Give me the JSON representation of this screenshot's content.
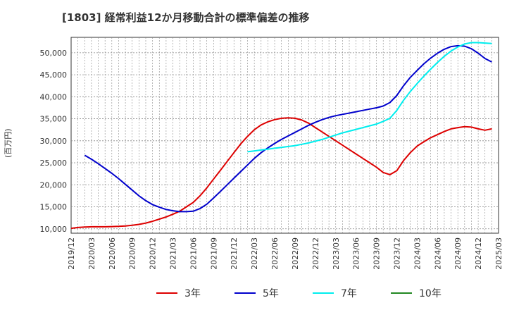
{
  "chart_data": {
    "type": "line",
    "title": "[1803]  経常利益12か月移動合計の標準偏差の推移",
    "ylabel": "(百万円)",
    "xlabel": "",
    "ylim": [
      9000,
      53500
    ],
    "yticks": [
      10000,
      15000,
      20000,
      25000,
      30000,
      35000,
      40000,
      45000,
      50000
    ],
    "ytick_labels": [
      "10,000",
      "15,000",
      "20,000",
      "25,000",
      "30,000",
      "35,000",
      "40,000",
      "45,000",
      "50,000"
    ],
    "xticks": [
      "2019/12",
      "2020/03",
      "2020/06",
      "2020/09",
      "2020/12",
      "2021/03",
      "2021/06",
      "2021/09",
      "2021/12",
      "2022/03",
      "2022/06",
      "2022/09",
      "2022/12",
      "2023/03",
      "2023/06",
      "2023/09",
      "2023/12",
      "2024/03",
      "2024/06",
      "2024/09",
      "2024/12",
      "2025/03"
    ],
    "grid": true,
    "legend_position": "bottom",
    "series": [
      {
        "name": "3年",
        "color": "#dd0000",
        "points": [
          [
            "2019/12",
            10100
          ],
          [
            "2020/01",
            10300
          ],
          [
            "2020/02",
            10400
          ],
          [
            "2020/03",
            10450
          ],
          [
            "2020/04",
            10450
          ],
          [
            "2020/05",
            10450
          ],
          [
            "2020/06",
            10500
          ],
          [
            "2020/07",
            10550
          ],
          [
            "2020/08",
            10650
          ],
          [
            "2020/09",
            10800
          ],
          [
            "2020/10",
            11000
          ],
          [
            "2020/11",
            11300
          ],
          [
            "2020/12",
            11700
          ],
          [
            "2021/01",
            12200
          ],
          [
            "2021/02",
            12700
          ],
          [
            "2021/03",
            13300
          ],
          [
            "2021/04",
            14000
          ],
          [
            "2021/05",
            15000
          ],
          [
            "2021/06",
            16000
          ],
          [
            "2021/07",
            17500
          ],
          [
            "2021/08",
            19300
          ],
          [
            "2021/09",
            21300
          ],
          [
            "2021/10",
            23300
          ],
          [
            "2021/11",
            25300
          ],
          [
            "2021/12",
            27300
          ],
          [
            "2022/01",
            29300
          ],
          [
            "2022/02",
            31000
          ],
          [
            "2022/03",
            32500
          ],
          [
            "2022/04",
            33600
          ],
          [
            "2022/05",
            34300
          ],
          [
            "2022/06",
            34800
          ],
          [
            "2022/07",
            35100
          ],
          [
            "2022/08",
            35200
          ],
          [
            "2022/09",
            35100
          ],
          [
            "2022/10",
            34700
          ],
          [
            "2022/11",
            34000
          ],
          [
            "2022/12",
            33000
          ],
          [
            "2023/01",
            32000
          ],
          [
            "2023/02",
            31000
          ],
          [
            "2023/03",
            30000
          ],
          [
            "2023/04",
            29000
          ],
          [
            "2023/05",
            28000
          ],
          [
            "2023/06",
            27000
          ],
          [
            "2023/07",
            26000
          ],
          [
            "2023/08",
            25000
          ],
          [
            "2023/09",
            24000
          ],
          [
            "2023/10",
            22800
          ],
          [
            "2023/11",
            22300
          ],
          [
            "2023/12",
            23200
          ],
          [
            "2024/01",
            25500
          ],
          [
            "2024/02",
            27300
          ],
          [
            "2024/03",
            28800
          ],
          [
            "2024/04",
            29800
          ],
          [
            "2024/05",
            30700
          ],
          [
            "2024/06",
            31400
          ],
          [
            "2024/07",
            32100
          ],
          [
            "2024/08",
            32700
          ],
          [
            "2024/09",
            33000
          ],
          [
            "2024/10",
            33200
          ],
          [
            "2024/11",
            33100
          ],
          [
            "2024/12",
            32700
          ],
          [
            "2025/01",
            32400
          ],
          [
            "2025/02",
            32700
          ]
        ]
      },
      {
        "name": "5年",
        "color": "#0000cc",
        "points": [
          [
            "2020/02",
            26700
          ],
          [
            "2020/03",
            25800
          ],
          [
            "2020/04",
            24800
          ],
          [
            "2020/05",
            23700
          ],
          [
            "2020/06",
            22600
          ],
          [
            "2020/07",
            21400
          ],
          [
            "2020/08",
            20100
          ],
          [
            "2020/09",
            18800
          ],
          [
            "2020/10",
            17500
          ],
          [
            "2020/11",
            16400
          ],
          [
            "2020/12",
            15500
          ],
          [
            "2021/01",
            14900
          ],
          [
            "2021/02",
            14400
          ],
          [
            "2021/03",
            14100
          ],
          [
            "2021/04",
            13900
          ],
          [
            "2021/05",
            13900
          ],
          [
            "2021/06",
            14000
          ],
          [
            "2021/07",
            14600
          ],
          [
            "2021/08",
            15600
          ],
          [
            "2021/09",
            17000
          ],
          [
            "2021/10",
            18500
          ],
          [
            "2021/11",
            20000
          ],
          [
            "2021/12",
            21500
          ],
          [
            "2022/01",
            23000
          ],
          [
            "2022/02",
            24500
          ],
          [
            "2022/03",
            26000
          ],
          [
            "2022/04",
            27300
          ],
          [
            "2022/05",
            28400
          ],
          [
            "2022/06",
            29400
          ],
          [
            "2022/07",
            30300
          ],
          [
            "2022/08",
            31100
          ],
          [
            "2022/09",
            31900
          ],
          [
            "2022/10",
            32700
          ],
          [
            "2022/11",
            33500
          ],
          [
            "2022/12",
            34200
          ],
          [
            "2023/01",
            34800
          ],
          [
            "2023/02",
            35300
          ],
          [
            "2023/03",
            35700
          ],
          [
            "2023/04",
            36000
          ],
          [
            "2023/05",
            36300
          ],
          [
            "2023/06",
            36600
          ],
          [
            "2023/07",
            36900
          ],
          [
            "2023/08",
            37200
          ],
          [
            "2023/09",
            37500
          ],
          [
            "2023/10",
            37900
          ],
          [
            "2023/11",
            38700
          ],
          [
            "2023/12",
            40300
          ],
          [
            "2024/01",
            42500
          ],
          [
            "2024/02",
            44400
          ],
          [
            "2024/03",
            46000
          ],
          [
            "2024/04",
            47500
          ],
          [
            "2024/05",
            48800
          ],
          [
            "2024/06",
            49900
          ],
          [
            "2024/07",
            50800
          ],
          [
            "2024/08",
            51400
          ],
          [
            "2024/09",
            51600
          ],
          [
            "2024/10",
            51500
          ],
          [
            "2024/11",
            50900
          ],
          [
            "2024/12",
            49900
          ],
          [
            "2025/01",
            48700
          ],
          [
            "2025/02",
            47900
          ]
        ]
      },
      {
        "name": "7年",
        "color": "#00eeee",
        "points": [
          [
            "2022/02",
            27500
          ],
          [
            "2022/03",
            27700
          ],
          [
            "2022/04",
            27900
          ],
          [
            "2022/05",
            28100
          ],
          [
            "2022/06",
            28300
          ],
          [
            "2022/07",
            28500
          ],
          [
            "2022/08",
            28700
          ],
          [
            "2022/09",
            28900
          ],
          [
            "2022/10",
            29200
          ],
          [
            "2022/11",
            29500
          ],
          [
            "2022/12",
            29900
          ],
          [
            "2023/01",
            30300
          ],
          [
            "2023/02",
            30800
          ],
          [
            "2023/03",
            31300
          ],
          [
            "2023/04",
            31800
          ],
          [
            "2023/05",
            32200
          ],
          [
            "2023/06",
            32600
          ],
          [
            "2023/07",
            33000
          ],
          [
            "2023/08",
            33400
          ],
          [
            "2023/09",
            33800
          ],
          [
            "2023/10",
            34400
          ],
          [
            "2023/11",
            35100
          ],
          [
            "2023/12",
            36900
          ],
          [
            "2024/01",
            39200
          ],
          [
            "2024/02",
            41200
          ],
          [
            "2024/03",
            43000
          ],
          [
            "2024/04",
            44700
          ],
          [
            "2024/05",
            46300
          ],
          [
            "2024/06",
            47800
          ],
          [
            "2024/07",
            49200
          ],
          [
            "2024/08",
            50400
          ],
          [
            "2024/09",
            51300
          ],
          [
            "2024/10",
            52000
          ],
          [
            "2024/11",
            52300
          ],
          [
            "2024/12",
            52300
          ],
          [
            "2025/01",
            52200
          ],
          [
            "2025/02",
            52100
          ]
        ]
      },
      {
        "name": "10年",
        "color": "#228822",
        "points": []
      }
    ]
  }
}
